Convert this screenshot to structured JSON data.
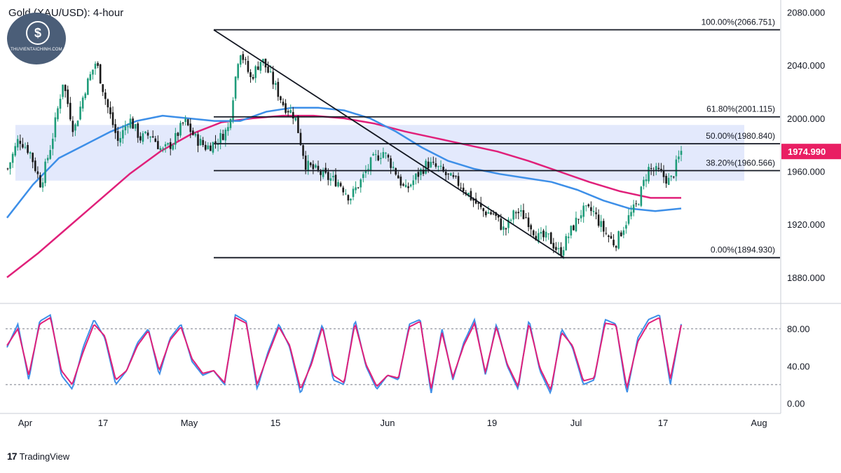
{
  "header": {
    "title": "Gold (XAU/USD): 4-hour"
  },
  "watermark": {
    "brand": "THUVIENTAICHINH.COM",
    "icon": "dollar-chart-logo"
  },
  "footer": {
    "brand": "TradingView",
    "icon": "tradingview-logo"
  },
  "colors": {
    "ma_fast": "#3d8fe8",
    "ma_slow": "#e0207a",
    "zone": "#d9e1fb",
    "up": "#1f9c7a",
    "down": "#1b1b1b",
    "price_tag": "#e91e63",
    "stoch_k": "#3d8fe8",
    "stoch_d": "#e0207a"
  },
  "chart_data": [
    {
      "type": "candlestick",
      "title": "Gold (XAU/USD): 4-hour",
      "x_tick_labels": [
        "Apr",
        "17",
        "May",
        "15",
        "Jun",
        "19",
        "Jul",
        "17",
        "Aug"
      ],
      "y_tick_labels": [
        "1880.000",
        "1920.000",
        "1960.000",
        "2000.000",
        "2040.000",
        "2080.000"
      ],
      "ylim": [
        1862,
        2085
      ],
      "last_price": 1974.99,
      "last_price_label": "1974.990",
      "fibonacci": [
        {
          "label": "100.00%(2066.751)",
          "level": 2066.751
        },
        {
          "label": "61.80%(2001.115)",
          "level": 2001.115
        },
        {
          "label": "50.00%(1980.840)",
          "level": 1980.84
        },
        {
          "label": "38.20%(1960.566)",
          "level": 1960.566
        },
        {
          "label": "0.00%(1894.930)",
          "level": 1894.93
        }
      ],
      "zone": {
        "top": 1995,
        "bottom": 1953
      },
      "trendline": {
        "from": 2066.7,
        "to": 1894.9
      },
      "close_anchors": [
        1962,
        1985,
        1975,
        1950,
        1983,
        2028,
        1990,
        2022,
        2043,
        2010,
        1982,
        2000,
        1985,
        1988,
        1975,
        1982,
        1998,
        1985,
        1978,
        1983,
        1993,
        2053,
        2030,
        2045,
        2028,
        2010,
        2002,
        1965,
        1960,
        1955,
        1952,
        1940,
        1953,
        1968,
        1975,
        1962,
        1945,
        1956,
        1966,
        1962,
        1955,
        1950,
        1940,
        1930,
        1928,
        1915,
        1930,
        1925,
        1910,
        1910,
        1898,
        1915,
        1930,
        1930,
        1915,
        1905,
        1922,
        1935,
        1962,
        1959,
        1952,
        1975
      ],
      "ma_fast": [
        1925,
        1950,
        1970,
        1980,
        1990,
        1998,
        2002,
        2000,
        1998,
        1998,
        2005,
        2008,
        2008,
        2006,
        2000,
        1990,
        1978,
        1968,
        1962,
        1958,
        1955,
        1952,
        1946,
        1938,
        1932,
        1930,
        1932
      ],
      "ma_slow": [
        1880,
        1898,
        1918,
        1938,
        1958,
        1975,
        1988,
        1997,
        2000,
        2002,
        2002,
        2000,
        1996,
        1990,
        1985,
        1980,
        1975,
        1968,
        1960,
        1952,
        1945,
        1940,
        1940
      ],
      "stochastic": {
        "y_tick_labels": [
          "0.00",
          "40.00",
          "80.00"
        ],
        "ylim": [
          -5,
          105
        ],
        "levels": [
          80,
          20
        ],
        "k_anchors": [
          60,
          85,
          25,
          88,
          95,
          30,
          15,
          60,
          90,
          70,
          20,
          35,
          65,
          80,
          30,
          70,
          85,
          45,
          30,
          35,
          20,
          95,
          88,
          15,
          55,
          85,
          60,
          10,
          45,
          85,
          25,
          20,
          90,
          40,
          15,
          30,
          25,
          85,
          90,
          10,
          80,
          25,
          65,
          90,
          30,
          85,
          40,
          15,
          90,
          35,
          10,
          80,
          60,
          20,
          25,
          90,
          85,
          10,
          70,
          90,
          95,
          20,
          85
        ],
        "d_anchors": [
          62,
          80,
          30,
          85,
          92,
          35,
          20,
          55,
          85,
          72,
          25,
          35,
          62,
          78,
          35,
          68,
          82,
          48,
          32,
          35,
          22,
          92,
          86,
          20,
          52,
          82,
          62,
          15,
          42,
          82,
          30,
          22,
          86,
          42,
          18,
          30,
          27,
          82,
          88,
          15,
          76,
          28,
          62,
          86,
          33,
          82,
          42,
          18,
          86,
          38,
          14,
          76,
          62,
          24,
          27,
          86,
          84,
          16,
          66,
          86,
          92,
          26,
          84
        ]
      }
    }
  ]
}
